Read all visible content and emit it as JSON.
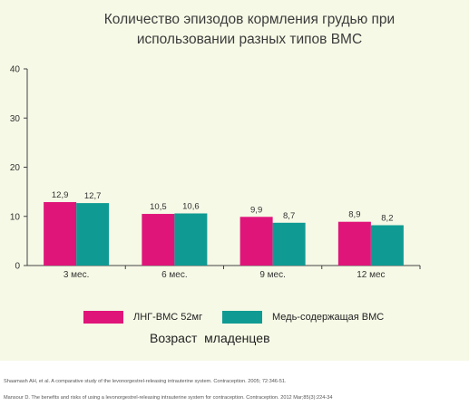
{
  "chart_data": {
    "type": "bar",
    "title_line1": "Количество эпизодов кормления грудью при",
    "title_line2": "использовании разных типов ВМС",
    "categories": [
      "3 мес.",
      "6 мес.",
      "9 мес.",
      "12 мес"
    ],
    "series": [
      {
        "name": "ЛНГ-ВМС 52мг",
        "values": [
          12.9,
          10.5,
          9.9,
          8.9
        ],
        "labels": [
          "12,9",
          "10,5",
          "9,9",
          "8,9"
        ],
        "color": "#e0157a"
      },
      {
        "name": "Медь-содержащая ВМС",
        "values": [
          12.7,
          10.6,
          8.7,
          8.2
        ],
        "labels": [
          "12,7",
          "10,6",
          "8,7",
          "8,2"
        ],
        "color": "#0f9b93"
      }
    ],
    "xlabel": "Возраст  младенцев",
    "ylim": [
      0,
      40
    ],
    "yticks": [
      0,
      10,
      20,
      30,
      40
    ],
    "grid": false,
    "legend_position": "bottom"
  },
  "references": [
    "Shaamash AH, et al. A comparative study of the levonorgestrel-releasing intrauterine system. Contraception. 2005; 72:346-51.",
    "Mansour D. The benefits and risks of using a levonorgestrel-releasing intrauterine system for contraception. Contraception. 2012 Mar;85(3):224-34"
  ]
}
